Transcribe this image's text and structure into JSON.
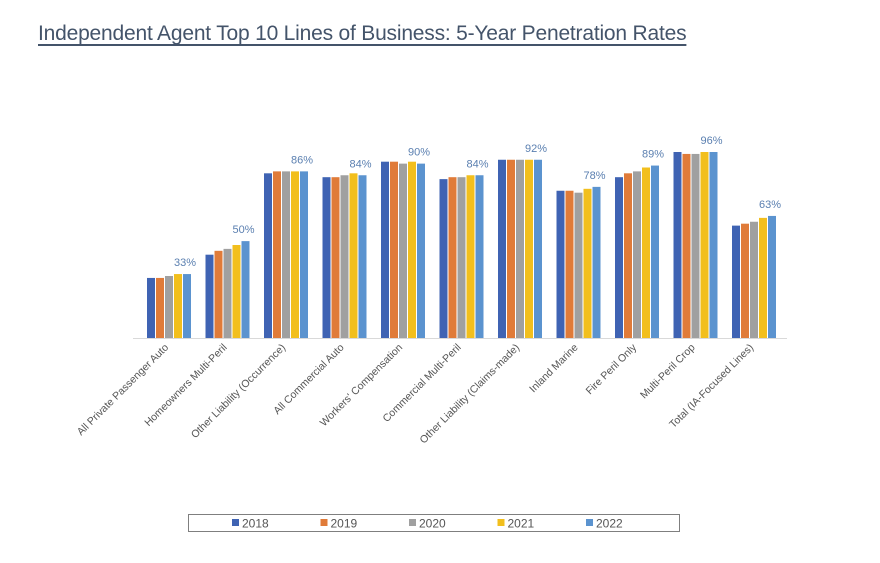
{
  "chart_data": {
    "type": "bar",
    "title": "Independent Agent Top 10 Lines of Business: 5-Year Penetration Rates",
    "xlabel": "",
    "ylabel": "",
    "ylim": [
      0,
      100
    ],
    "grid": false,
    "legend_position": "bottom",
    "categories": [
      "All Private Passenger Auto",
      "Homeowners Multi-Peril",
      "Other Liability (Occurrence)",
      "All Commercial Auto",
      "Workers' Compensation",
      "Commercial Multi-Peril",
      "Other Liability (Claims-made)",
      "Inland Marine",
      "Fire Peril Only",
      "Multi-Peril Crop",
      "Total (IA-Focused Lines)"
    ],
    "series": [
      {
        "name": "2018",
        "color": "#3F63B3",
        "values": [
          31,
          43,
          85,
          83,
          91,
          82,
          92,
          76,
          83,
          96,
          58
        ]
      },
      {
        "name": "2019",
        "color": "#E07B39",
        "values": [
          31,
          45,
          86,
          83,
          91,
          83,
          92,
          76,
          85,
          95,
          59
        ]
      },
      {
        "name": "2020",
        "color": "#A0A0A0",
        "values": [
          32,
          46,
          86,
          84,
          90,
          83,
          92,
          75,
          86,
          95,
          60
        ]
      },
      {
        "name": "2021",
        "color": "#F2BF1D",
        "values": [
          33,
          48,
          86,
          85,
          91,
          84,
          92,
          77,
          88,
          96,
          62
        ]
      },
      {
        "name": "2022",
        "color": "#5B93CF",
        "values": [
          33,
          50,
          86,
          84,
          90,
          84,
          92,
          78,
          89,
          96,
          63
        ]
      }
    ],
    "data_labels": [
      "33%",
      "50%",
      "86%",
      "84%",
      "90%",
      "84%",
      "92%",
      "78%",
      "89%",
      "96%",
      "63%"
    ]
  }
}
